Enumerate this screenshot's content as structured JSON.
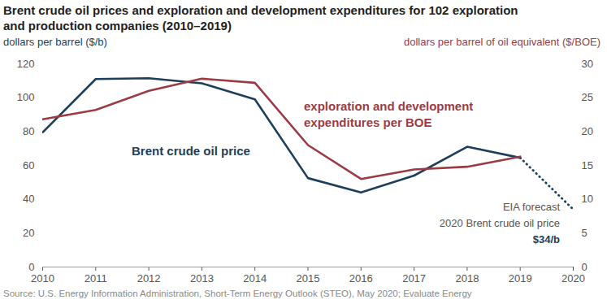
{
  "chart_data": {
    "type": "line",
    "title": "Brent crude oil prices and exploration and development expenditures for 102 exploration and production companies (2010–2019)",
    "y_label": "dollars per barrel ($/b)",
    "y2_label": "dollars per barrel of oil equivalent ($/BOE)",
    "xlim": [
      2010,
      2020
    ],
    "xticks": [
      2010,
      2011,
      2012,
      2013,
      2014,
      2015,
      2016,
      2017,
      2018,
      2019,
      2020
    ],
    "ylim": [
      0,
      120
    ],
    "yticks": [
      0,
      20,
      40,
      60,
      80,
      100,
      120
    ],
    "y2lim": [
      0,
      30
    ],
    "y2ticks": [
      0,
      5,
      10,
      15,
      20,
      25,
      30
    ],
    "grid": false,
    "series": [
      {
        "name": "Brent crude oil price",
        "color": "#1d3f5b",
        "line_style": "solid",
        "x": [
          2010,
          2011,
          2012,
          2013,
          2014,
          2015,
          2016,
          2017,
          2018,
          2019
        ],
        "values": [
          79.5,
          111,
          111.5,
          108.5,
          99,
          52.5,
          44,
          54,
          71,
          64.5
        ]
      },
      {
        "name": "EIA forecast",
        "color": "#1d3f5b",
        "line_style": "dotted",
        "x": [
          2019,
          2020
        ],
        "values": [
          64.5,
          34
        ]
      },
      {
        "name": "exploration and development expenditures per BOE",
        "color": "#9b3b45",
        "line_style": "solid",
        "axis": "y2",
        "x": [
          2010,
          2011,
          2012,
          2013,
          2014,
          2015,
          2016,
          2017,
          2018,
          2019
        ],
        "values": [
          21.8,
          23.2,
          26,
          27.8,
          27.2,
          18,
          13,
          14.4,
          14.8,
          16.3
        ]
      }
    ],
    "annotations": [
      "2020 Brent crude oil price",
      "$34/b"
    ],
    "source": "Source: U.S. Energy Information Administration, Short-Term Energy Outlook (STEO), May 2020; Evaluate Energy"
  }
}
